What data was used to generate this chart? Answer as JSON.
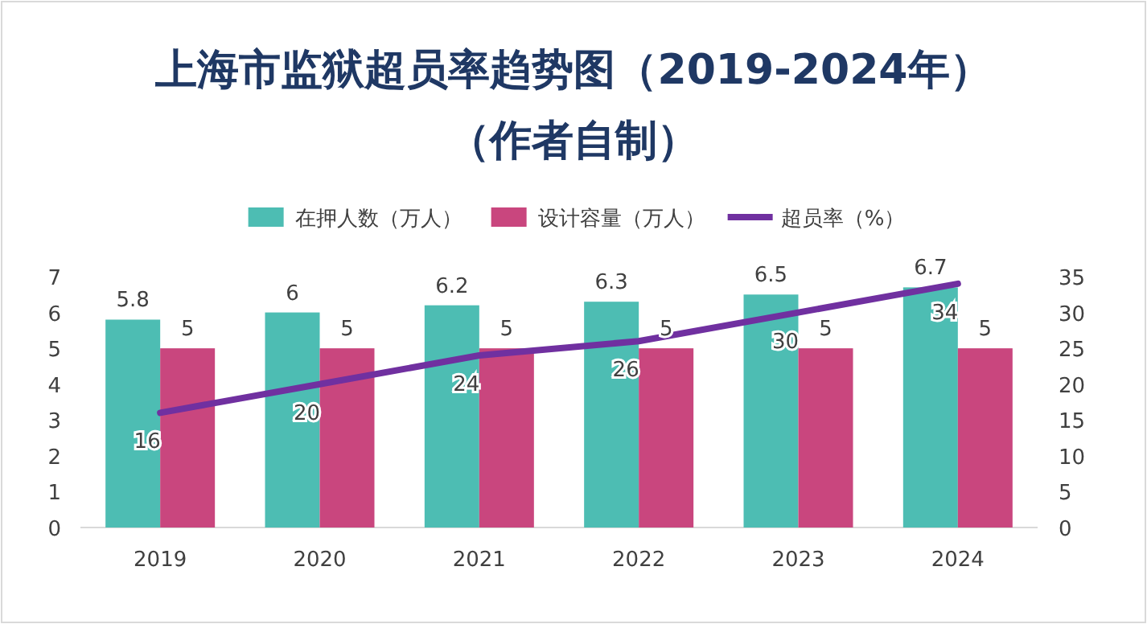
{
  "chart_data": {
    "type": "bar",
    "title": "上海市监狱超员率趋势图（2019-2024年）",
    "subtitle": "（作者自制）",
    "categories": [
      "2019",
      "2020",
      "2021",
      "2022",
      "2023",
      "2024"
    ],
    "series": [
      {
        "name": "在押人数（万人）",
        "color": "#4dbdb3",
        "values": [
          5.8,
          6,
          6.2,
          6.3,
          6.5,
          6.7
        ]
      },
      {
        "name": "设计容量（万人）",
        "color": "#c9467e",
        "values": [
          5,
          5,
          5,
          5,
          5,
          5
        ]
      },
      {
        "name": "超员率（%）",
        "type": "line",
        "axis": "y2",
        "color": "#7030a0",
        "values": [
          16,
          20,
          24,
          26,
          30,
          34
        ]
      }
    ],
    "ylim": [
      0,
      7
    ],
    "yticks": [
      0,
      1,
      2,
      3,
      4,
      5,
      6,
      7
    ],
    "y2lim": [
      0,
      35
    ],
    "y2ticks": [
      0,
      5,
      10,
      15,
      20,
      25,
      30,
      35
    ],
    "data_labels": true,
    "legend": "top"
  }
}
